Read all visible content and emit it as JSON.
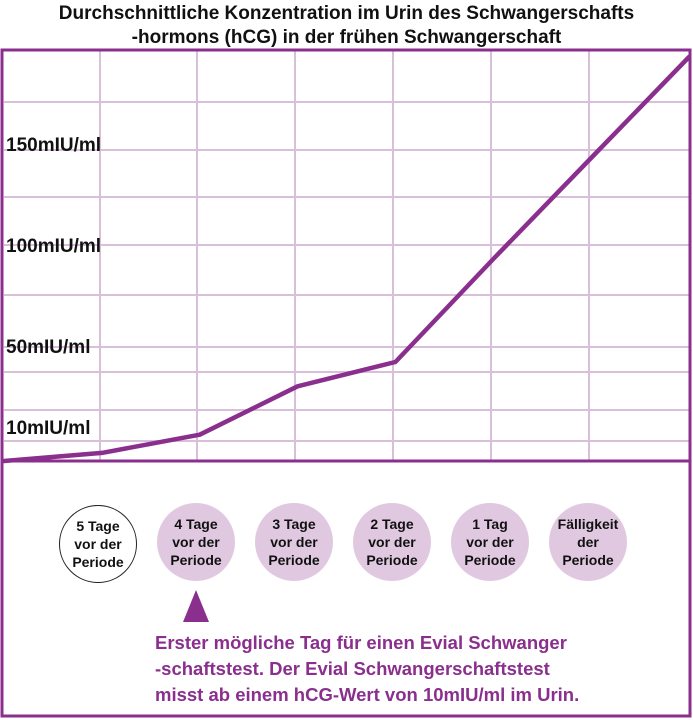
{
  "title_lines": [
    "Durchschnittliche Konzentration im Urin des Schwangerschafts",
    "-hormons (hCG) in der frühen Schwangerschaft"
  ],
  "colors": {
    "accent": "#8a2f8e",
    "grid": "#d9bfd9",
    "circle_fill": "#e0c9e0"
  },
  "chart_data": {
    "type": "line",
    "title": "Durchschnittliche Konzentration im Urin des Schwangerschafts -hormons (hCG) in der frühen Schwangerschaft",
    "y_tick_labels": [
      "10mIU/ml",
      "50mIU/ml",
      "100mIU/ml",
      "150mIU/ml"
    ],
    "y_ticks": [
      10,
      50,
      100,
      150
    ],
    "ylim": [
      0,
      200
    ],
    "grid": true,
    "x": [
      0,
      1,
      2,
      3,
      4,
      5,
      6,
      7
    ],
    "values": [
      0,
      4,
      13,
      37,
      49,
      100,
      150,
      200
    ]
  },
  "days": [
    {
      "lines": [
        "5 Tage",
        "vor der",
        "Periode"
      ],
      "style": "white"
    },
    {
      "lines": [
        "4 Tage",
        "vor der",
        "Periode"
      ],
      "style": "lilac"
    },
    {
      "lines": [
        "3 Tage",
        "vor der",
        "Periode"
      ],
      "style": "lilac"
    },
    {
      "lines": [
        "2 Tage",
        "vor der",
        "Periode"
      ],
      "style": "lilac"
    },
    {
      "lines": [
        "1 Tag",
        "vor der",
        "Periode"
      ],
      "style": "lilac"
    },
    {
      "lines": [
        "Fälligkeit",
        "der",
        "Periode"
      ],
      "style": "lilac"
    }
  ],
  "note_lines": [
    "Erster mögliche Tag für einen Evial Schwanger",
    "-schaftstest. Der Evial Schwangerschaftstest",
    "misst ab einem hCG-Wert von 10mIU/ml im Urin."
  ]
}
